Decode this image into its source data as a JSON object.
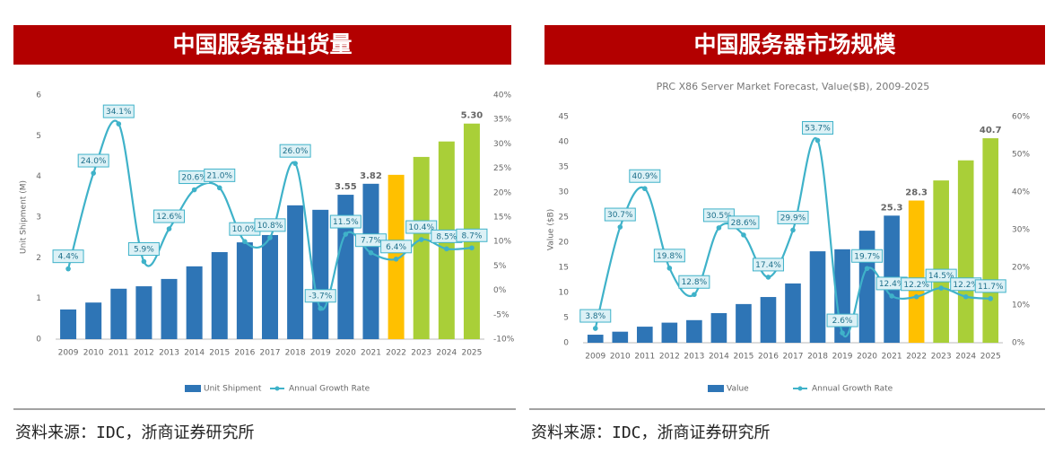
{
  "chart_data": [
    {
      "type": "bar",
      "header": "中国服务器出货量",
      "y_label": "Unit Shipment (M)",
      "categories": [
        "2009",
        "2010",
        "2011",
        "2012",
        "2013",
        "2014",
        "2015",
        "2016",
        "2017",
        "2018",
        "2019",
        "2020",
        "2021",
        "2022",
        "2023",
        "2024",
        "2025"
      ],
      "series": [
        {
          "name": "Unit Shipment",
          "color": "#2e75b6",
          "colors": [
            "#2e75b6",
            "#2e75b6",
            "#2e75b6",
            "#2e75b6",
            "#2e75b6",
            "#2e75b6",
            "#2e75b6",
            "#2e75b6",
            "#2e75b6",
            "#2e75b6",
            "#2e75b6",
            "#2e75b6",
            "#2e75b6",
            "#ffc000",
            "#a9cf38",
            "#a9cf38",
            "#a9cf38"
          ],
          "values": [
            0.73,
            0.9,
            1.24,
            1.3,
            1.48,
            1.79,
            2.14,
            2.38,
            2.56,
            3.29,
            3.18,
            3.55,
            3.82,
            4.04,
            4.48,
            4.86,
            5.3
          ],
          "value_labels": [
            null,
            null,
            null,
            null,
            null,
            null,
            null,
            null,
            null,
            null,
            null,
            "3.55",
            "3.82",
            null,
            null,
            null,
            "5.30"
          ]
        },
        {
          "name": "Annual Growth Rate",
          "type": "line",
          "axis": "y2",
          "color": "#3fb2c9",
          "values": [
            4.4,
            24.0,
            34.1,
            5.9,
            12.6,
            20.6,
            21.0,
            10.0,
            10.8,
            26.0,
            -3.7,
            11.5,
            7.7,
            6.4,
            10.4,
            8.5,
            8.7
          ],
          "value_labels": [
            "4.4%",
            "24.0%",
            "34.1%",
            "5.9%",
            "12.6%",
            "20.6%",
            "21.0%",
            "10.0%",
            "10.8%",
            "26.0%",
            "-3.7%",
            "11.5%",
            "7.7%",
            "6.4%",
            "10.4%",
            "8.5%",
            "8.7%"
          ]
        }
      ],
      "ylim": [
        0,
        6
      ],
      "yticks": [
        0,
        1,
        2,
        3,
        4,
        5,
        6
      ],
      "y2lim": [
        -10,
        40
      ],
      "y2ticks": [
        {
          "value": -10,
          "label": "-10%"
        },
        {
          "value": -5,
          "label": "-5%"
        },
        {
          "value": 0,
          "label": "0%"
        },
        {
          "value": 5,
          "label": "5%"
        },
        {
          "value": 10,
          "label": "10%"
        },
        {
          "value": 15,
          "label": "15%"
        },
        {
          "value": 20,
          "label": "20%"
        },
        {
          "value": 25,
          "label": "25%"
        },
        {
          "value": 30,
          "label": "30%"
        },
        {
          "value": 35,
          "label": "35%"
        },
        {
          "value": 40,
          "label": "40%"
        }
      ],
      "legend": "bottom",
      "source": "资料来源：IDC，浙商证券研究所"
    },
    {
      "type": "bar",
      "header": "中国服务器市场规模",
      "title": "PRC X86 Server Market Forecast, Value($B), 2009-2025",
      "y_label": "Value ($B)",
      "categories": [
        "2009",
        "2010",
        "2011",
        "2012",
        "2013",
        "2014",
        "2015",
        "2016",
        "2017",
        "2018",
        "2019",
        "2020",
        "2021",
        "2022",
        "2023",
        "2024",
        "2025"
      ],
      "series": [
        {
          "name": "Value",
          "color": "#2e75b6",
          "colors": [
            "#2e75b6",
            "#2e75b6",
            "#2e75b6",
            "#2e75b6",
            "#2e75b6",
            "#2e75b6",
            "#2e75b6",
            "#2e75b6",
            "#2e75b6",
            "#2e75b6",
            "#2e75b6",
            "#2e75b6",
            "#2e75b6",
            "#ffc000",
            "#a9cf38",
            "#a9cf38",
            "#a9cf38"
          ],
          "values": [
            1.6,
            2.2,
            3.2,
            4.0,
            4.5,
            5.9,
            7.7,
            9.1,
            11.8,
            18.2,
            18.6,
            22.3,
            25.3,
            28.3,
            32.3,
            36.3,
            40.7
          ],
          "value_labels": [
            null,
            null,
            null,
            null,
            null,
            null,
            null,
            null,
            null,
            null,
            null,
            null,
            "25.3",
            "28.3",
            null,
            null,
            "40.7"
          ]
        },
        {
          "name": "Annual Growth Rate",
          "type": "line",
          "axis": "y2",
          "color": "#3fb2c9",
          "values": [
            3.8,
            30.7,
            40.9,
            19.8,
            12.8,
            30.5,
            28.6,
            17.4,
            29.9,
            53.7,
            2.6,
            19.7,
            12.4,
            12.2,
            14.5,
            12.2,
            11.7
          ],
          "value_labels": [
            "3.8%",
            "30.7%",
            "40.9%",
            "19.8%",
            "12.8%",
            "30.5%",
            "28.6%",
            "17.4%",
            "29.9%",
            "53.7%",
            "2.6%",
            "19.7%",
            "12.4%",
            "12.2%",
            "14.5%",
            "12.2%",
            "11.7%"
          ]
        }
      ],
      "ylim": [
        0,
        45
      ],
      "yticks": [
        0,
        5,
        10,
        15,
        20,
        25,
        30,
        35,
        40,
        45
      ],
      "y2lim": [
        0,
        60
      ],
      "y2ticks": [
        {
          "value": 0,
          "label": "0%"
        },
        {
          "value": 10,
          "label": "10%"
        },
        {
          "value": 20,
          "label": "20%"
        },
        {
          "value": 30,
          "label": "30%"
        },
        {
          "value": 40,
          "label": "40%"
        },
        {
          "value": 50,
          "label": "50%"
        },
        {
          "value": 60,
          "label": "60%"
        }
      ],
      "legend": "bottom",
      "source": "资料来源：IDC，浙商证券研究所"
    }
  ]
}
